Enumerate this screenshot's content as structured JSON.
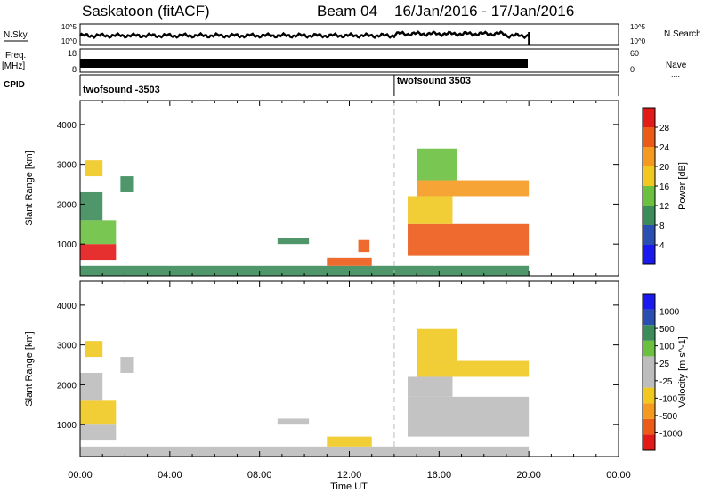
{
  "header": {
    "station": "Saskatoon",
    "product": "(fitACF)",
    "beam_label": "Beam 04",
    "date_range": "16/Jan/2016 - 17/Jan/2016"
  },
  "side_labels": {
    "nsky": "N.Sky",
    "nsearch": "N.Search",
    "nsearch_dots": ".......",
    "freq": "Freq.",
    "freq_unit": "[MHz]",
    "nave": "Nave",
    "nave_dots": "....",
    "cpid": "CPID"
  },
  "noise_panel": {
    "left_ticks": [
      "10^5",
      "10^0"
    ],
    "right_ticks": [
      "10^5",
      "10^0"
    ]
  },
  "freq_panel": {
    "left_ticks": [
      "18",
      "8"
    ],
    "right_ticks": [
      "60",
      "0"
    ]
  },
  "cpid_panel": {
    "segments": [
      {
        "label": "twofsound -3503",
        "start_hour": 0
      },
      {
        "label": "twofsound 3503",
        "start_hour": 14
      }
    ]
  },
  "colors": {
    "power": [
      "#1a1aee",
      "#2a4fb0",
      "#3c8c5a",
      "#6bc040",
      "#f0c820",
      "#f59a20",
      "#ec5a18",
      "#e21a18"
    ],
    "velocity": [
      "#e21a18",
      "#ec5a18",
      "#f59a20",
      "#f0c820",
      "#bdbdbd",
      "#bdbdbd",
      "#6bc040",
      "#3c8c5a",
      "#2a4fb0",
      "#1a1aee"
    ]
  },
  "chart_data": [
    {
      "type": "heatmap",
      "name": "power",
      "xlabel": "Time UT",
      "ylabel": "Slant Range [km]",
      "x_ticks": [
        "00:00",
        "04:00",
        "08:00",
        "12:00",
        "16:00",
        "20:00",
        "00:00"
      ],
      "xlim_hours": [
        0,
        24
      ],
      "y_ticks": [
        "1000",
        "2000",
        "3000",
        "4000"
      ],
      "ylim": [
        200,
        4600
      ],
      "colorbar": {
        "label": "Power [dB]",
        "ticks": [
          "4",
          "8",
          "12",
          "16",
          "20",
          "24",
          "28"
        ],
        "range": [
          0,
          32
        ]
      },
      "regions": [
        {
          "t0": 0.0,
          "t1": 1.6,
          "r0": 600,
          "r1": 1000,
          "value": 30
        },
        {
          "t0": 0.0,
          "t1": 1.6,
          "r0": 1000,
          "r1": 1600,
          "value": 14
        },
        {
          "t0": 0.0,
          "t1": 1.0,
          "r0": 1600,
          "r1": 2300,
          "value": 10
        },
        {
          "t0": 0.2,
          "t1": 1.0,
          "r0": 2700,
          "r1": 3100,
          "value": 18
        },
        {
          "t0": 1.8,
          "t1": 2.4,
          "r0": 2300,
          "r1": 2700,
          "value": 8
        },
        {
          "t0": 0.0,
          "t1": 20.0,
          "r0": 200,
          "r1": 450,
          "value": 8
        },
        {
          "t0": 8.8,
          "t1": 10.2,
          "r0": 1000,
          "r1": 1150,
          "value": 8
        },
        {
          "t0": 11.0,
          "t1": 13.0,
          "r0": 450,
          "r1": 650,
          "value": 26
        },
        {
          "t0": 12.4,
          "t1": 12.9,
          "r0": 800,
          "r1": 1100,
          "value": 24
        },
        {
          "t0": 14.6,
          "t1": 20.0,
          "r0": 700,
          "r1": 1500,
          "value": 26
        },
        {
          "t0": 15.0,
          "t1": 20.0,
          "r0": 2200,
          "r1": 2600,
          "value": 22
        },
        {
          "t0": 14.6,
          "t1": 16.6,
          "r0": 1500,
          "r1": 2200,
          "value": 16
        },
        {
          "t0": 15.0,
          "t1": 16.8,
          "r0": 2600,
          "r1": 3400,
          "value": 14
        }
      ]
    },
    {
      "type": "heatmap",
      "name": "velocity",
      "xlabel": "Time UT",
      "ylabel": "Slant Range [km]",
      "x_ticks": [
        "00:00",
        "04:00",
        "08:00",
        "12:00",
        "16:00",
        "20:00",
        "00:00"
      ],
      "xlim_hours": [
        0,
        24
      ],
      "y_ticks": [
        "1000",
        "2000",
        "3000",
        "4000"
      ],
      "ylim": [
        200,
        4600
      ],
      "colorbar": {
        "label": "Velocity [m s^-1]",
        "ticks": [
          "-1000",
          "-500",
          "-100",
          "-25",
          "25",
          "100",
          "500",
          "1000"
        ]
      },
      "regions": [
        {
          "t0": 0.0,
          "t1": 1.6,
          "r0": 600,
          "r1": 1000,
          "value": 0
        },
        {
          "t0": 0.0,
          "t1": 1.6,
          "r0": 1000,
          "r1": 1600,
          "value": -150
        },
        {
          "t0": 0.0,
          "t1": 1.0,
          "r0": 1600,
          "r1": 2300,
          "value": 0
        },
        {
          "t0": 0.2,
          "t1": 1.0,
          "r0": 2700,
          "r1": 3100,
          "value": -200
        },
        {
          "t0": 1.8,
          "t1": 2.4,
          "r0": 2300,
          "r1": 2700,
          "value": 0
        },
        {
          "t0": 0.0,
          "t1": 20.0,
          "r0": 200,
          "r1": 450,
          "value": -60
        },
        {
          "t0": 8.8,
          "t1": 10.2,
          "r0": 1000,
          "r1": 1150,
          "value": 0
        },
        {
          "t0": 11.0,
          "t1": 13.0,
          "r0": 450,
          "r1": 700,
          "value": -120
        },
        {
          "t0": 14.6,
          "t1": 20.0,
          "r0": 700,
          "r1": 1700,
          "value": 0
        },
        {
          "t0": 15.0,
          "t1": 20.0,
          "r0": 2200,
          "r1": 2600,
          "value": -300
        },
        {
          "t0": 14.6,
          "t1": 16.6,
          "r0": 1700,
          "r1": 2200,
          "value": 0
        },
        {
          "t0": 15.0,
          "t1": 16.8,
          "r0": 2600,
          "r1": 3400,
          "value": -200
        }
      ]
    }
  ]
}
